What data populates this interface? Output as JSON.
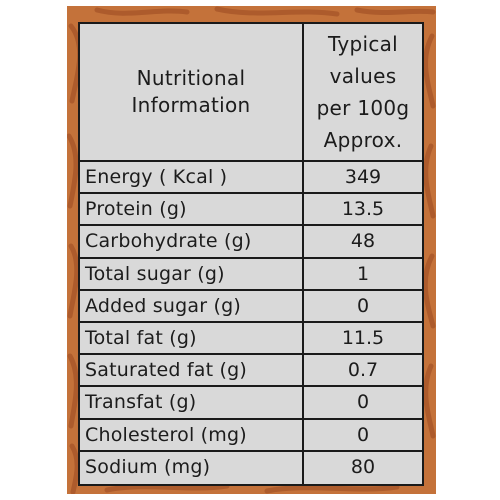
{
  "header": {
    "left_line1": "Nutritional",
    "left_line2": "Information",
    "right_line1": "Typical",
    "right_line2": "values",
    "right_line3": "per 100g",
    "right_line4": "Approx."
  },
  "rows": [
    {
      "name": "Energy ( Kcal )",
      "value": "349"
    },
    {
      "name": "Protein  (g)",
      "value": "13.5"
    },
    {
      "name": "Carbohydrate (g)",
      "value": "48"
    },
    {
      "name": "Total sugar (g)",
      "value": "1"
    },
    {
      "name": "Added sugar (g)",
      "value": "0"
    },
    {
      "name": "Total fat (g)",
      "value": "11.5"
    },
    {
      "name": "Saturated fat (g)",
      "value": "0.7"
    },
    {
      "name": "Transfat (g)",
      "value": "0"
    },
    {
      "name": "Cholesterol (mg)",
      "value": "0"
    },
    {
      "name": "Sodium (mg)",
      "value": "80"
    }
  ],
  "colors": {
    "packaging_background": "#c4723a",
    "pattern": "#a9582a",
    "label_background": "#d9d9d9",
    "border": "#1a1a1a"
  }
}
